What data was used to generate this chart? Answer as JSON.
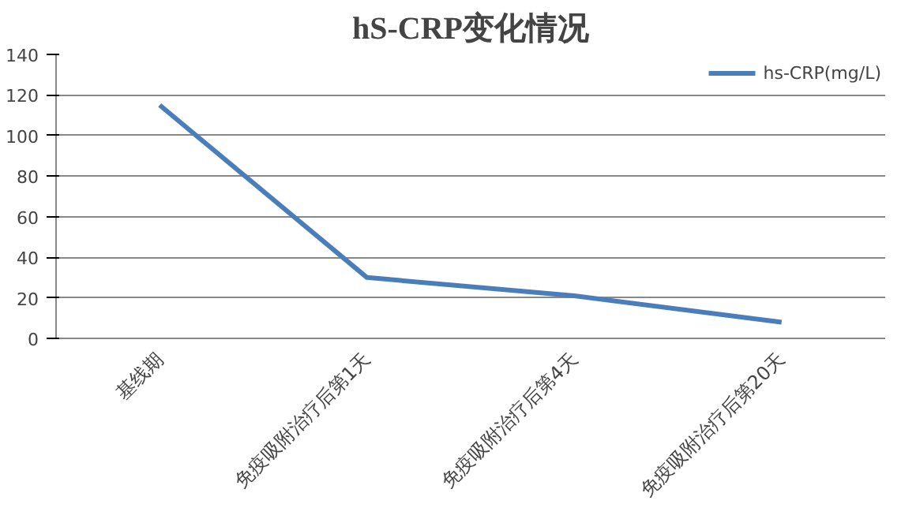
{
  "chart_data": {
    "type": "line",
    "title": "hS-CRP变化情况",
    "categories": [
      "基线期",
      "免疫吸附治疗后第1天",
      "免疫吸附治疗后第4天",
      "免疫吸附治疗后第20天"
    ],
    "series": [
      {
        "name": "hs-CRP(mg/L)",
        "color": "#4a7ebb",
        "values": [
          115,
          30,
          21,
          8
        ]
      }
    ],
    "ylim": [
      0,
      140
    ],
    "yticks": [
      0,
      20,
      40,
      60,
      80,
      100,
      120,
      140
    ],
    "grid": "y",
    "legend": "top right",
    "marker": "none",
    "line_style": "solid"
  }
}
